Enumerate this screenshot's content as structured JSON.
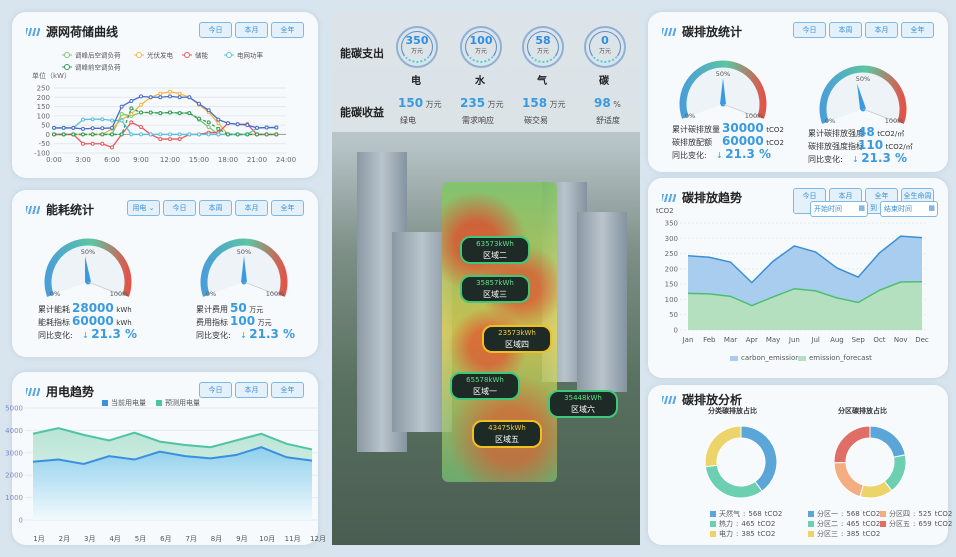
{
  "colors": {
    "accent": "#3a9ae0",
    "bg": "#d9e5ee"
  },
  "load_curve": {
    "title": "源网荷储曲线",
    "buttons": [
      "今日",
      "本月",
      "全年"
    ],
    "chart_data": {
      "type": "line",
      "ylabel": "单位（kW）",
      "ylim": [
        -100,
        250
      ],
      "yticks": [
        250,
        200,
        150,
        100,
        50,
        0,
        -50,
        -100
      ],
      "xticks": [
        "0:00",
        "3:00",
        "6:00",
        "9:00",
        "12:00",
        "15:00",
        "18:00",
        "21:00",
        "24:00"
      ],
      "x": [
        0,
        1,
        2,
        3,
        4,
        5,
        6,
        7,
        8,
        9,
        10,
        11,
        12,
        13,
        14,
        15,
        16,
        17,
        18,
        19,
        20,
        21,
        22,
        23
      ],
      "series": [
        {
          "name": "调峰后空调负荷",
          "color": "#7cc86a",
          "values": [
            0,
            0,
            0,
            0,
            0,
            0,
            0,
            110,
            100,
            118,
            118,
            115,
            118,
            115,
            115,
            80,
            40,
            0,
            0,
            0,
            0,
            0,
            0,
            0
          ]
        },
        {
          "name": "光伏发电",
          "color": "#f5b544",
          "values": [
            0,
            0,
            0,
            0,
            0,
            0,
            30,
            80,
            110,
            160,
            200,
            220,
            230,
            220,
            200,
            160,
            120,
            60,
            0,
            0,
            0,
            0,
            0,
            0
          ]
        },
        {
          "name": "储能",
          "color": "#e8595a",
          "values": [
            0,
            0,
            0,
            -50,
            -50,
            -50,
            -70,
            0,
            65,
            40,
            0,
            -25,
            -25,
            -25,
            0,
            0,
            10,
            10,
            60,
            55,
            55,
            0,
            0,
            0
          ]
        },
        {
          "name": "电网功率",
          "color": "#5bc0e0",
          "values": [
            35,
            35,
            35,
            80,
            82,
            82,
            75,
            75,
            0,
            0,
            0,
            0,
            0,
            0,
            0,
            0,
            0,
            0,
            0,
            0,
            0,
            35,
            37,
            37
          ]
        },
        {
          "name": "调峰前空调负荷",
          "color": "#2e9a5e",
          "dashed": true,
          "values": [
            0,
            0,
            0,
            0,
            0,
            0,
            0,
            0,
            140,
            118,
            118,
            115,
            118,
            115,
            115,
            85,
            65,
            30,
            0,
            0,
            0,
            0,
            0,
            0
          ]
        },
        {
          "color": "#4a6cc8",
          "values": [
            35,
            35,
            35,
            30,
            33,
            33,
            35,
            150,
            180,
            205,
            200,
            200,
            205,
            200,
            200,
            165,
            130,
            80,
            60,
            55,
            50,
            35,
            37,
            37
          ]
        }
      ]
    }
  },
  "energy": {
    "title": "能耗统计",
    "select": "用电",
    "buttons": [
      "今日",
      "本周",
      "本月",
      "全年"
    ],
    "gauges": [
      {
        "percent": 47,
        "labels": [
          "0%",
          "50%",
          "100%"
        ],
        "rows": [
          {
            "k": "累计能耗",
            "v": "28000",
            "u": "kWh"
          },
          {
            "k": "能耗指标",
            "v": "60000",
            "u": "kWh"
          }
        ],
        "change_label": "同比变化:",
        "change": "21.3 %"
      },
      {
        "percent": 50,
        "labels": [
          "0%",
          "50%",
          "100%"
        ],
        "rows": [
          {
            "k": "累计费用",
            "v": "50",
            "u": "万元"
          },
          {
            "k": "费用指标",
            "v": "100",
            "u": "万元"
          }
        ],
        "change_label": "同比变化:",
        "change": "21.3 %"
      }
    ]
  },
  "power_trend": {
    "title": "用电趋势",
    "buttons": [
      "今日",
      "本月",
      "全年"
    ],
    "chart_data": {
      "type": "area",
      "ylim": [
        0,
        5000
      ],
      "yticks": [
        5000,
        4000,
        3000,
        2000,
        1000,
        0
      ],
      "categories": [
        "1月",
        "2月",
        "3月",
        "4月",
        "5月",
        "6月",
        "7月",
        "8月",
        "9月",
        "10月",
        "11月",
        "12月"
      ],
      "series": [
        {
          "name": "当前用电量",
          "color": "#3a8fe0",
          "values": [
            2600,
            2700,
            2500,
            2850,
            2700,
            3050,
            2850,
            2750,
            2900,
            3250,
            2800,
            2650
          ]
        },
        {
          "name": "预测用电量",
          "color": "#4fc4a0",
          "values": [
            3850,
            4100,
            3800,
            3550,
            3900,
            3500,
            3350,
            3250,
            3550,
            3850,
            3400,
            3150
          ]
        }
      ]
    }
  },
  "center": {
    "expense_label": "能碳支出",
    "expenses": [
      {
        "value": "350",
        "unit": "万元",
        "name": "电"
      },
      {
        "value": "100",
        "unit": "万元",
        "name": "水"
      },
      {
        "value": "58",
        "unit": "万元",
        "name": "气"
      },
      {
        "value": "0",
        "unit": "万元",
        "name": "碳"
      }
    ],
    "income_label": "能碳收益",
    "incomes": [
      {
        "value": "150",
        "unit": "万元",
        "name": "绿电"
      },
      {
        "value": "235",
        "unit": "万元",
        "name": "需求响应"
      },
      {
        "value": "158",
        "unit": "万元",
        "name": "碳交易"
      },
      {
        "value": "98",
        "unit": "%",
        "name": "舒适度"
      }
    ],
    "zones": [
      {
        "kwh": "63573kWh",
        "name": "区域二"
      },
      {
        "kwh": "35857kWh",
        "name": "区域三"
      },
      {
        "kwh": "23573kWh",
        "name": "区域四"
      },
      {
        "kwh": "65578kWh",
        "name": "区域一"
      },
      {
        "kwh": "35448kWh",
        "name": "区域六"
      },
      {
        "kwh": "43475kWh",
        "name": "区域五"
      }
    ]
  },
  "carbon_stats": {
    "title": "碳排放统计",
    "buttons": [
      "今日",
      "本周",
      "本月",
      "全年"
    ],
    "gauges": [
      {
        "percent": 50,
        "labels": [
          "0%",
          "50%",
          "100%"
        ],
        "rows": [
          {
            "k": "累计碳排放量",
            "v": "30000",
            "u": "tCO2"
          },
          {
            "k": "碳排放配额",
            "v": "60000",
            "u": "tCO2"
          }
        ],
        "change_label": "同比变化:",
        "change": "21.3 %"
      },
      {
        "percent": 44,
        "labels": [
          "0%",
          "50%",
          "100%"
        ],
        "rows": [
          {
            "k": "累计碳排放强度",
            "v": "48",
            "u": "tCO2/㎡"
          },
          {
            "k": "碳排放强度指标",
            "v": "110",
            "u": "tCO2/㎡"
          }
        ],
        "change_label": "同比变化:",
        "change": "21.3 %"
      }
    ]
  },
  "carbon_trend": {
    "title": "碳排放趋势",
    "buttons": [
      "今日",
      "本月",
      "全年",
      "全生命周期"
    ],
    "start_placeholder": "开始时间",
    "to": "到",
    "end_placeholder": "结束时间",
    "chart_data": {
      "type": "area",
      "ylabel": "tCO2",
      "ylim": [
        0,
        350
      ],
      "yticks": [
        350,
        300,
        250,
        200,
        150,
        100,
        50,
        0
      ],
      "categories": [
        "Jan",
        "Feb",
        "Mar",
        "Apr",
        "May",
        "Jun",
        "Jul",
        "Aug",
        "Sep",
        "Oct",
        "Nov",
        "Dec"
      ],
      "series": [
        {
          "name": "carbon_emission",
          "color": "#3a8fd8",
          "fill": "#a9cdee",
          "values": [
            243,
            238,
            222,
            155,
            225,
            275,
            255,
            203,
            173,
            252,
            307,
            302
          ]
        },
        {
          "name": "emission_forecast",
          "color": "#4cbf6e",
          "fill": "#b5e0c0",
          "values": [
            120,
            118,
            110,
            80,
            108,
            135,
            128,
            105,
            90,
            130,
            157,
            158
          ]
        }
      ]
    }
  },
  "carbon_analysis": {
    "title": "碳排放分析",
    "chart_data": [
      {
        "type": "pie",
        "title": "分类碳排放占比",
        "slices": [
          {
            "label": "天然气",
            "value": 568,
            "unit": "tCO2",
            "color": "#5aa6d8"
          },
          {
            "label": "热力",
            "value": 465,
            "unit": "tCO2",
            "color": "#6ccfb0"
          },
          {
            "label": "电力",
            "value": 385,
            "unit": "tCO2",
            "color": "#ecd36a"
          }
        ]
      },
      {
        "type": "pie",
        "title": "分区碳排放占比",
        "slices": [
          {
            "label": "分区一",
            "value": 568,
            "unit": "tCO2",
            "color": "#5aa6d8"
          },
          {
            "label": "分区二",
            "value": 465,
            "unit": "tCO2",
            "color": "#6ccfb0"
          },
          {
            "label": "分区三",
            "value": 385,
            "unit": "tCO2",
            "color": "#ecd36a"
          },
          {
            "label": "分区四",
            "value": 525,
            "unit": "tCO2",
            "color": "#f4ad80"
          },
          {
            "label": "分区五",
            "value": 659,
            "unit": "tCO2",
            "color": "#de6e66"
          }
        ]
      }
    ]
  }
}
